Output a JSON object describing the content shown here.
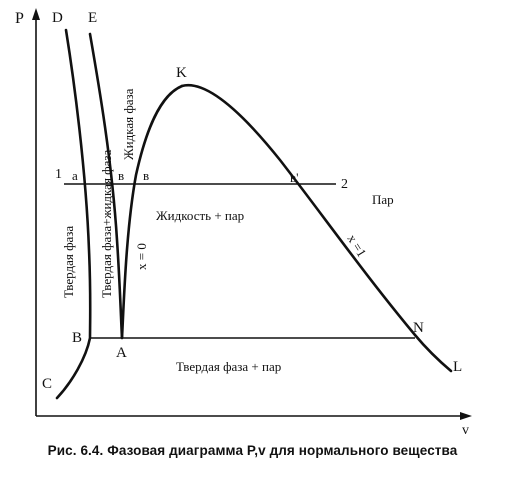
{
  "axes": {
    "y_label": "P",
    "x_label": "v"
  },
  "points": {
    "D": "D",
    "E": "E",
    "K": "K",
    "C": "C",
    "B": "B",
    "A": "A",
    "N": "N",
    "L": "L",
    "p1": "1",
    "p2": "2",
    "a": "a",
    "b1": "в",
    "b2": "в",
    "b3": "в'"
  },
  "regions": {
    "solid": "Твердая фаза",
    "solid_liquid": "Твердая фаза+жидкая фаза",
    "liquid": "Жидкая фаза",
    "liquid_vapor": "Жидкость + пар",
    "vapor": "Пар",
    "solid_vapor": "Твердая фаза + пар"
  },
  "curve_labels": {
    "x0": "x = 0",
    "x1": "x =1"
  },
  "caption": "Рис. 6.4. Фазовая диаграмма P,v для нормального вещества"
}
